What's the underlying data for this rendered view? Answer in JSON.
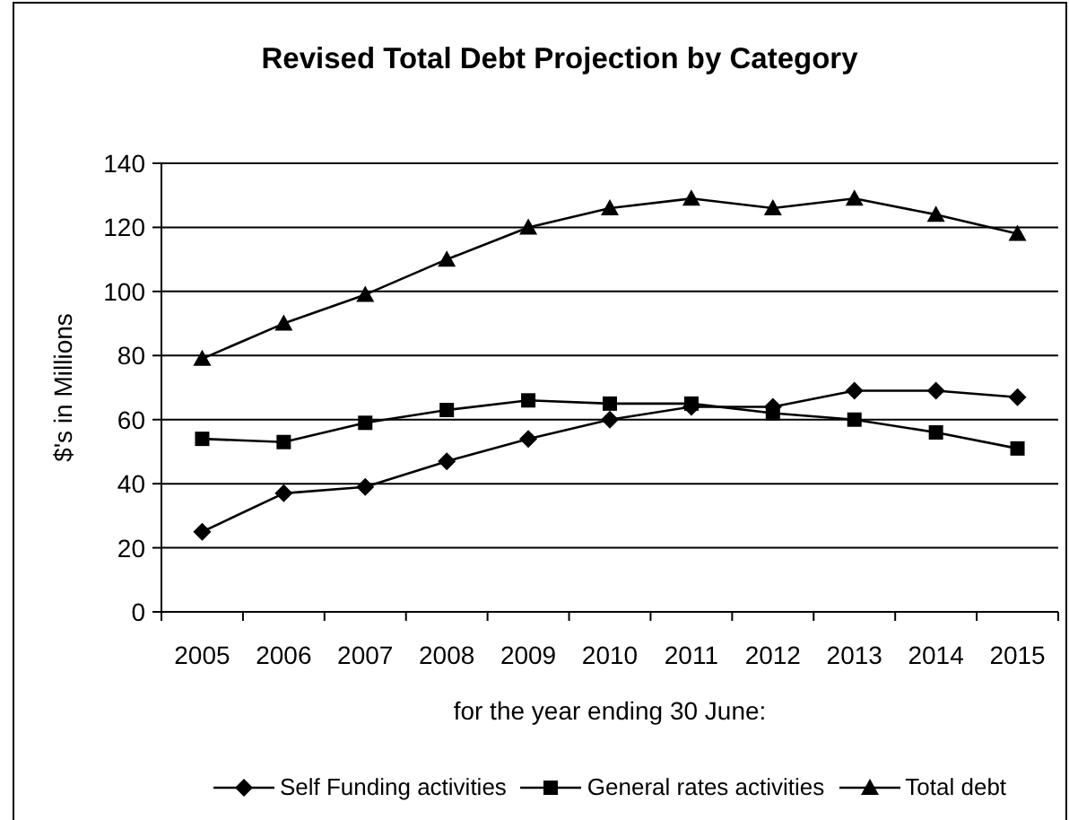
{
  "chart_data": {
    "type": "line",
    "title": "Revised Total Debt Projection by Category",
    "xlabel": "for the year ending 30 June:",
    "ylabel": "$'s in Millions",
    "categories": [
      "2005",
      "2006",
      "2007",
      "2008",
      "2009",
      "2010",
      "2011",
      "2012",
      "2013",
      "2014",
      "2015"
    ],
    "series": [
      {
        "name": "Self Funding activities",
        "color": "#000000",
        "marker": "diamond",
        "values": [
          25,
          37,
          39,
          47,
          54,
          60,
          64,
          64,
          69,
          69,
          67
        ]
      },
      {
        "name": "General rates activities",
        "color": "#000000",
        "marker": "square",
        "values": [
          54,
          53,
          59,
          63,
          66,
          65,
          65,
          62,
          60,
          56,
          51
        ]
      },
      {
        "name": "Total debt",
        "color": "#000000",
        "marker": "triangle",
        "values": [
          79,
          90,
          99,
          110,
          120,
          126,
          129,
          126,
          129,
          124,
          118
        ]
      }
    ],
    "ylim": [
      0,
      140
    ],
    "yticks": [
      0,
      20,
      40,
      60,
      80,
      100,
      120,
      140
    ],
    "grid": "y",
    "legend": "bottom"
  }
}
